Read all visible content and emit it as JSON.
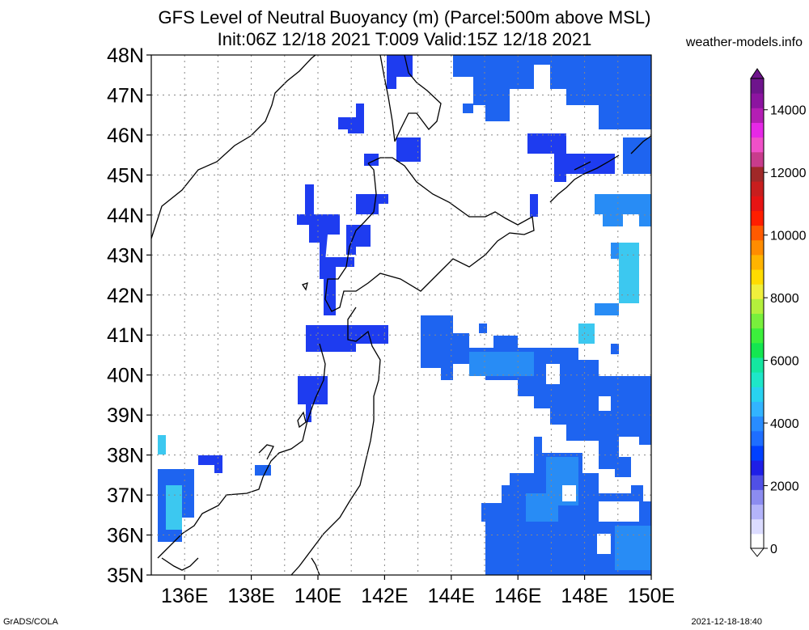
{
  "title": {
    "line1": "GFS Level of Neutral Buoyancy (m) (Parcel:500m above MSL)",
    "line2": "Init:06Z 12/18 2021 T:009 Valid:15Z 12/18 2021"
  },
  "site": "weather-models.info",
  "footer": {
    "left": "GrADS/COLA",
    "right": "2021-12-18-18:40"
  },
  "axes": {
    "lat_labels": [
      "48N",
      "47N",
      "46N",
      "45N",
      "44N",
      "43N",
      "42N",
      "41N",
      "40N",
      "39N",
      "38N",
      "37N",
      "36N",
      "35N"
    ],
    "lon_labels": [
      "136E",
      "138E",
      "140E",
      "142E",
      "144E",
      "146E",
      "148E",
      "150E"
    ],
    "lat_range": [
      35,
      48
    ],
    "lon_range": [
      135,
      150
    ]
  },
  "colorbar": {
    "ticks": [
      "0",
      "2000",
      "4000",
      "6000",
      "8000",
      "10000",
      "12000",
      "14000"
    ],
    "range": [
      0,
      15000
    ],
    "colors": [
      "#ffffff",
      "#dcdcff",
      "#b4b4fa",
      "#8c8cf0",
      "#5050e6",
      "#1e1ee6",
      "#0040ff",
      "#1e6eff",
      "#288cff",
      "#32b4ff",
      "#28d2f0",
      "#1ee6c8",
      "#14e6a0",
      "#14e650",
      "#3cf03c",
      "#78f03c",
      "#b4f03c",
      "#f0f03c",
      "#ffdc00",
      "#ffb400",
      "#ff8c00",
      "#ff5a00",
      "#ff1e00",
      "#e61414",
      "#c81e1e",
      "#a02828",
      "#c83c8c",
      "#f050c8",
      "#e628e6",
      "#b41eb4",
      "#8c14a0",
      "#6e148c"
    ]
  },
  "field_colors": {
    "blue": "#1e3cf0",
    "mid": "#1e64f0",
    "light": "#288cf5",
    "cyan": "#3cc8f0"
  }
}
